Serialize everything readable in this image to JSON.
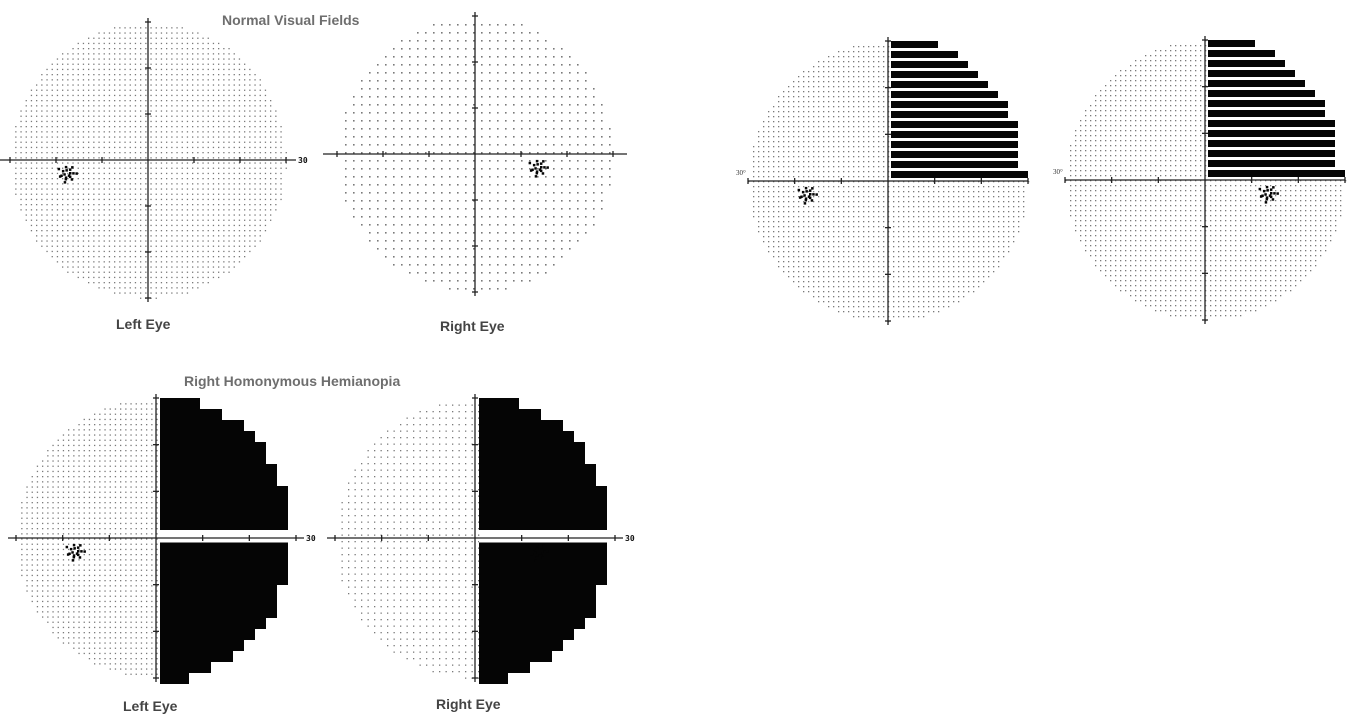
{
  "panels": {
    "normal": {
      "title": "Normal Visual Fields",
      "left_label": "Left Eye",
      "right_label": "Right Eye",
      "scale_label": "30"
    },
    "hemianopia": {
      "title": "Right Homonymous Hemianopia",
      "left_label": "Left Eye",
      "right_label": "Right Eye",
      "scale_label": "30"
    },
    "quadrantanopia": {
      "degree_label_left": "30°",
      "degree_label_right": "30°"
    }
  },
  "colors": {
    "title": "#6e6e6e",
    "label": "#444444",
    "dots": "#7a7a7a",
    "defect": "#050505",
    "axis": "#222222"
  },
  "fields": {
    "normal_left": {
      "eye": "left",
      "defect": "none"
    },
    "normal_right": {
      "eye": "right",
      "defect": "none"
    },
    "hemianopia_left": {
      "eye": "left",
      "defect": "right-half"
    },
    "hemianopia_right": {
      "eye": "right",
      "defect": "right-half"
    },
    "quadrant_left": {
      "eye": "left",
      "defect": "upper-right-quadrant"
    },
    "quadrant_right": {
      "eye": "right",
      "defect": "upper-right-quadrant"
    }
  }
}
